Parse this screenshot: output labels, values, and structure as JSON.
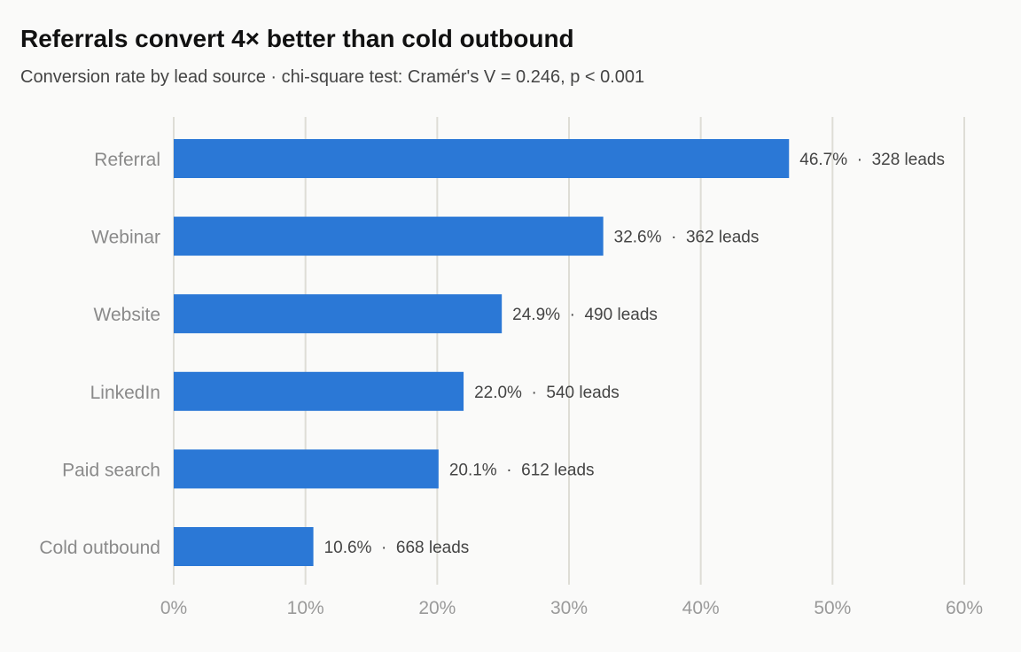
{
  "chart_data": {
    "type": "bar",
    "orientation": "horizontal",
    "title": "Referrals convert 4× better than cold outbound",
    "subtitle": "Conversion rate by lead source · chi-square test: Cramér's V = 0.246, p < 0.001",
    "xlabel": "",
    "ylabel": "",
    "xlim": [
      0,
      60
    ],
    "x_ticks": [
      "0%",
      "10%",
      "20%",
      "30%",
      "40%",
      "50%",
      "60%"
    ],
    "x_tick_values": [
      0,
      10,
      20,
      30,
      40,
      50,
      60
    ],
    "grid": "vertical",
    "categories": [
      "Referral",
      "Webinar",
      "Website",
      "LinkedIn",
      "Paid search",
      "Cold outbound"
    ],
    "values": [
      46.7,
      32.6,
      24.9,
      22.0,
      20.1,
      10.6
    ],
    "leads": [
      328,
      362,
      490,
      540,
      612,
      668
    ],
    "data_labels": [
      "46.7%  ·  328 leads",
      "32.6%  ·  362 leads",
      "24.9%  ·  490 leads",
      "22.0%  ·  540 leads",
      "20.1%  ·  612 leads",
      "10.6%  ·  668 leads"
    ],
    "colors": {
      "bar": "#2b78d6",
      "grid": "#deddd6",
      "background": "#fafaf9"
    }
  }
}
